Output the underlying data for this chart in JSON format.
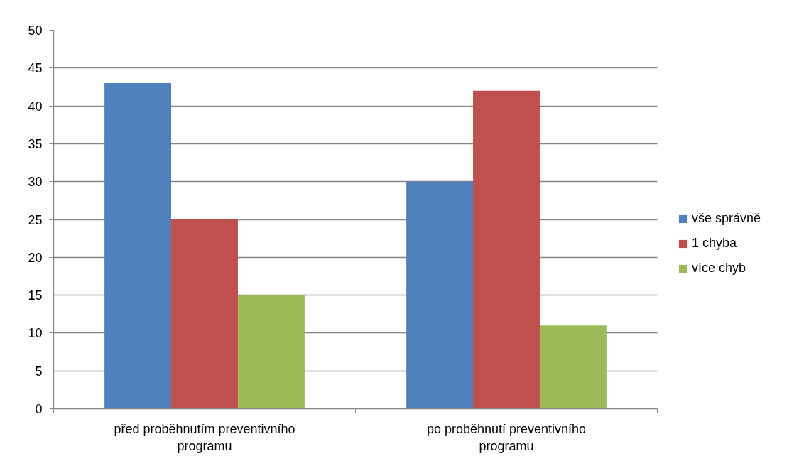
{
  "chart_data": {
    "type": "bar",
    "categories": [
      "před proběhnutím preventivního programu",
      "po proběhnutí preventivního programu"
    ],
    "series": [
      {
        "name": "vše správně",
        "color": "#4f81bd",
        "values": [
          43,
          30
        ]
      },
      {
        "name": "1 chyba",
        "color": "#c0504d",
        "values": [
          25,
          42
        ]
      },
      {
        "name": "více chyb",
        "color": "#9bbb59",
        "values": [
          15,
          11
        ]
      }
    ],
    "ylim": [
      0,
      50
    ],
    "yticks": [
      0,
      5,
      10,
      15,
      20,
      25,
      30,
      35,
      40,
      45,
      50
    ],
    "grid": "y",
    "legend": "right"
  }
}
